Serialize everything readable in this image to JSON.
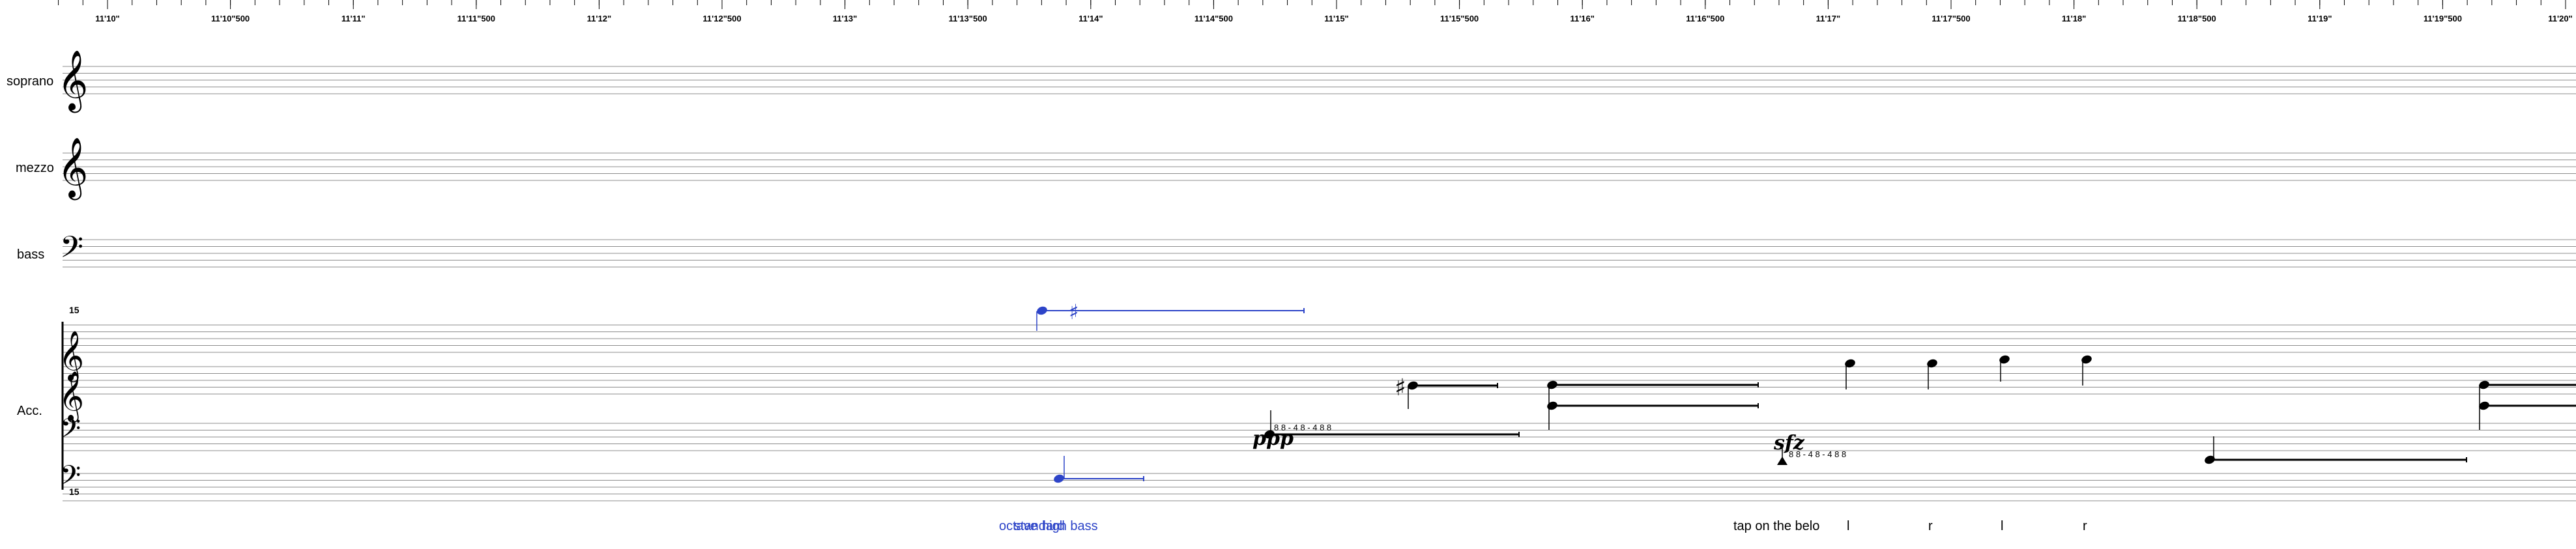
{
  "colors": {
    "ink": "#000000",
    "staff_line": "#8c8c8c",
    "accent": "#2d44c8"
  },
  "ruler": {
    "labels": [
      "11'10\"",
      "11'10\"500",
      "11'11\"",
      "11'11\"500",
      "11'12\"",
      "11'12\"500",
      "11'13\"",
      "11'13\"500",
      "11'14\"",
      "11'14\"500",
      "11'15\"",
      "11'15\"500",
      "11'16\"",
      "11'16\"500",
      "11'17\"",
      "11'17\"500",
      "11'18\"",
      "11'18\"500",
      "11'19\"",
      "11'19\"500",
      "11'20\""
    ]
  },
  "staves": {
    "soprano": {
      "name": "soprano",
      "clef": "treble"
    },
    "mezzo": {
      "name": "mezzo",
      "clef": "treble"
    },
    "bass": {
      "name": "bass",
      "clef": "bass"
    },
    "acc": {
      "name": "Acc.",
      "octave_marks": [
        "15",
        "15"
      ]
    }
  },
  "markings": {
    "ppp": "ppp",
    "sfz": "sfz",
    "tuplet_a": "8 8 - 4 8 - 4 8 8",
    "tuplet_b": "8 8 - 4 8 - 4 8 8"
  },
  "annotations": {
    "blue_left": "octave",
    "blue_mid": "standard",
    "blue_right": "high bass",
    "tap_text": "tap on the belo",
    "hands": [
      "l",
      "r",
      "l",
      "r"
    ]
  }
}
